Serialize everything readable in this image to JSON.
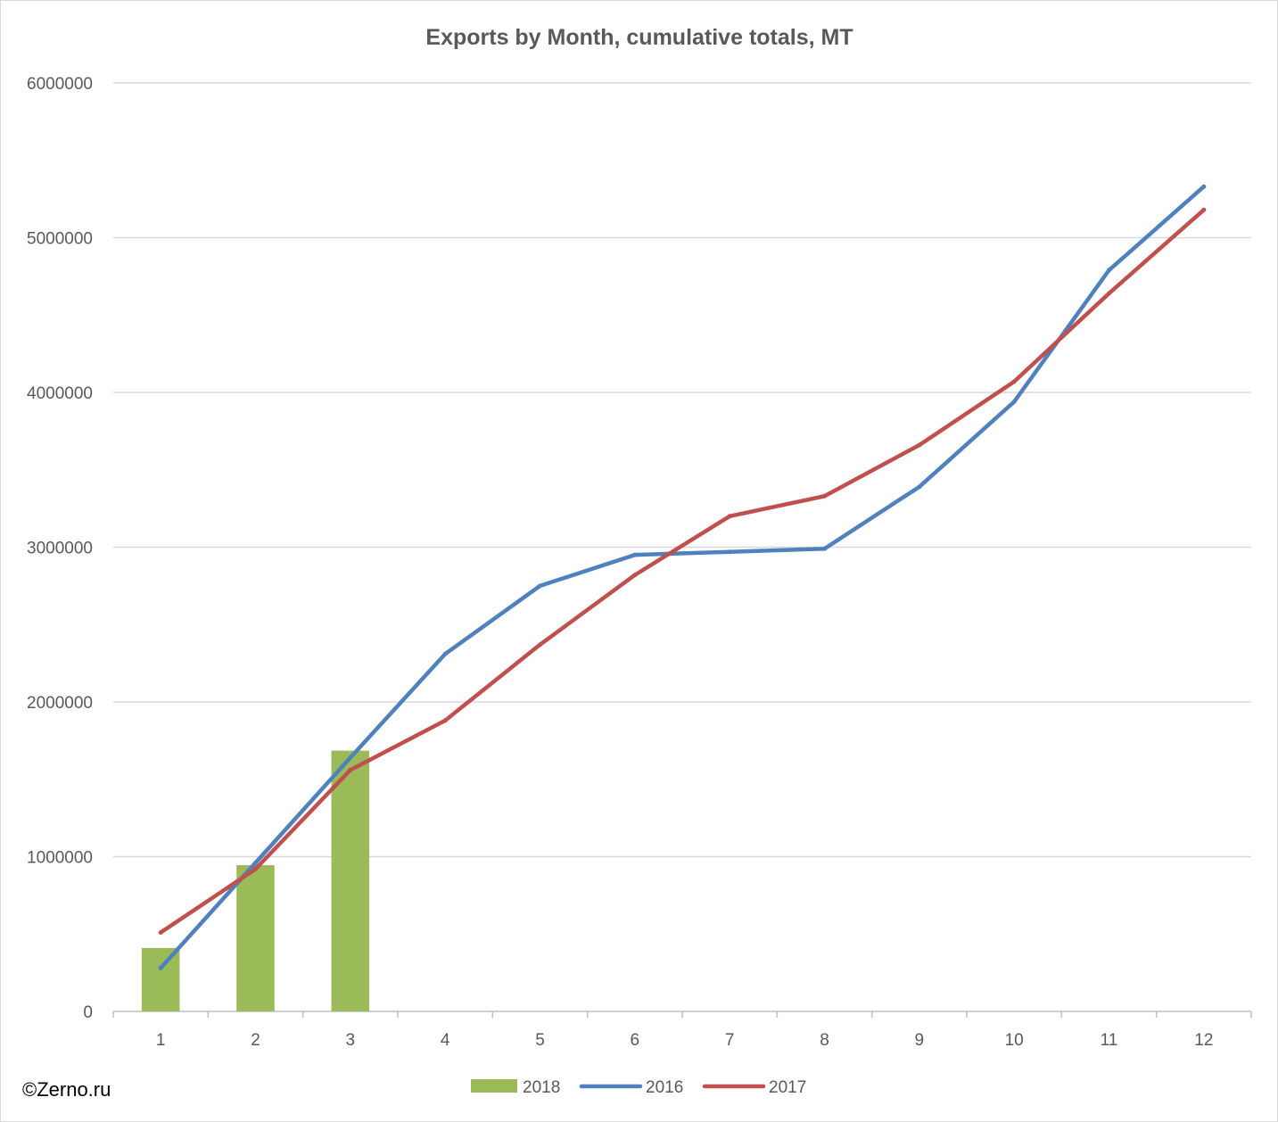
{
  "chart_data": {
    "type": "bar+line",
    "title": "Exports by Month, cumulative totals, MT",
    "xlabel": "",
    "ylabel": "",
    "categories": [
      "1",
      "2",
      "3",
      "4",
      "5",
      "6",
      "7",
      "8",
      "9",
      "10",
      "11",
      "12"
    ],
    "ylim": [
      0,
      6000000
    ],
    "yticks": [
      "0",
      "1000000",
      "2000000",
      "3000000",
      "4000000",
      "5000000",
      "6000000"
    ],
    "grid": true,
    "legend_position": "bottom",
    "series": [
      {
        "name": "2018",
        "kind": "bar",
        "color": "#9bbb59",
        "values": [
          410000,
          945000,
          1685000,
          null,
          null,
          null,
          null,
          null,
          null,
          null,
          null,
          null
        ]
      },
      {
        "name": "2016",
        "kind": "line",
        "color": "#4f81bd",
        "values": [
          280000,
          960000,
          1640000,
          2310000,
          2750000,
          2950000,
          2970000,
          2990000,
          3390000,
          3940000,
          4790000,
          5330000
        ]
      },
      {
        "name": "2017",
        "kind": "line",
        "color": "#c0504d",
        "values": [
          510000,
          920000,
          1560000,
          1880000,
          2370000,
          2820000,
          3200000,
          3330000,
          3660000,
          4070000,
          4640000,
          5180000
        ]
      }
    ]
  },
  "watermark": "©Zerno.ru"
}
